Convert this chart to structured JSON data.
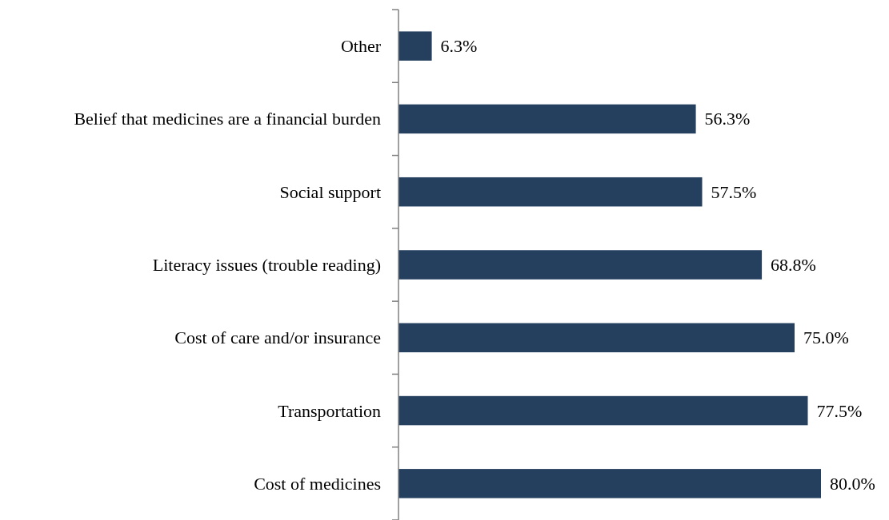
{
  "chart_data": {
    "type": "bar",
    "orientation": "horizontal",
    "categories": [
      "Other",
      "Belief that medicines are a financial burden",
      "Social support",
      "Literacy issues (trouble reading)",
      "Cost of care and/or insurance",
      "Transportation",
      "Cost of medicines"
    ],
    "values": [
      6.3,
      56.3,
      57.5,
      68.8,
      75.0,
      77.5,
      80.0
    ],
    "value_labels": [
      "6.3%",
      "56.3%",
      "57.5%",
      "68.8%",
      "75.0%",
      "77.5%",
      "80.0%"
    ],
    "color": "#253f5f"
  }
}
